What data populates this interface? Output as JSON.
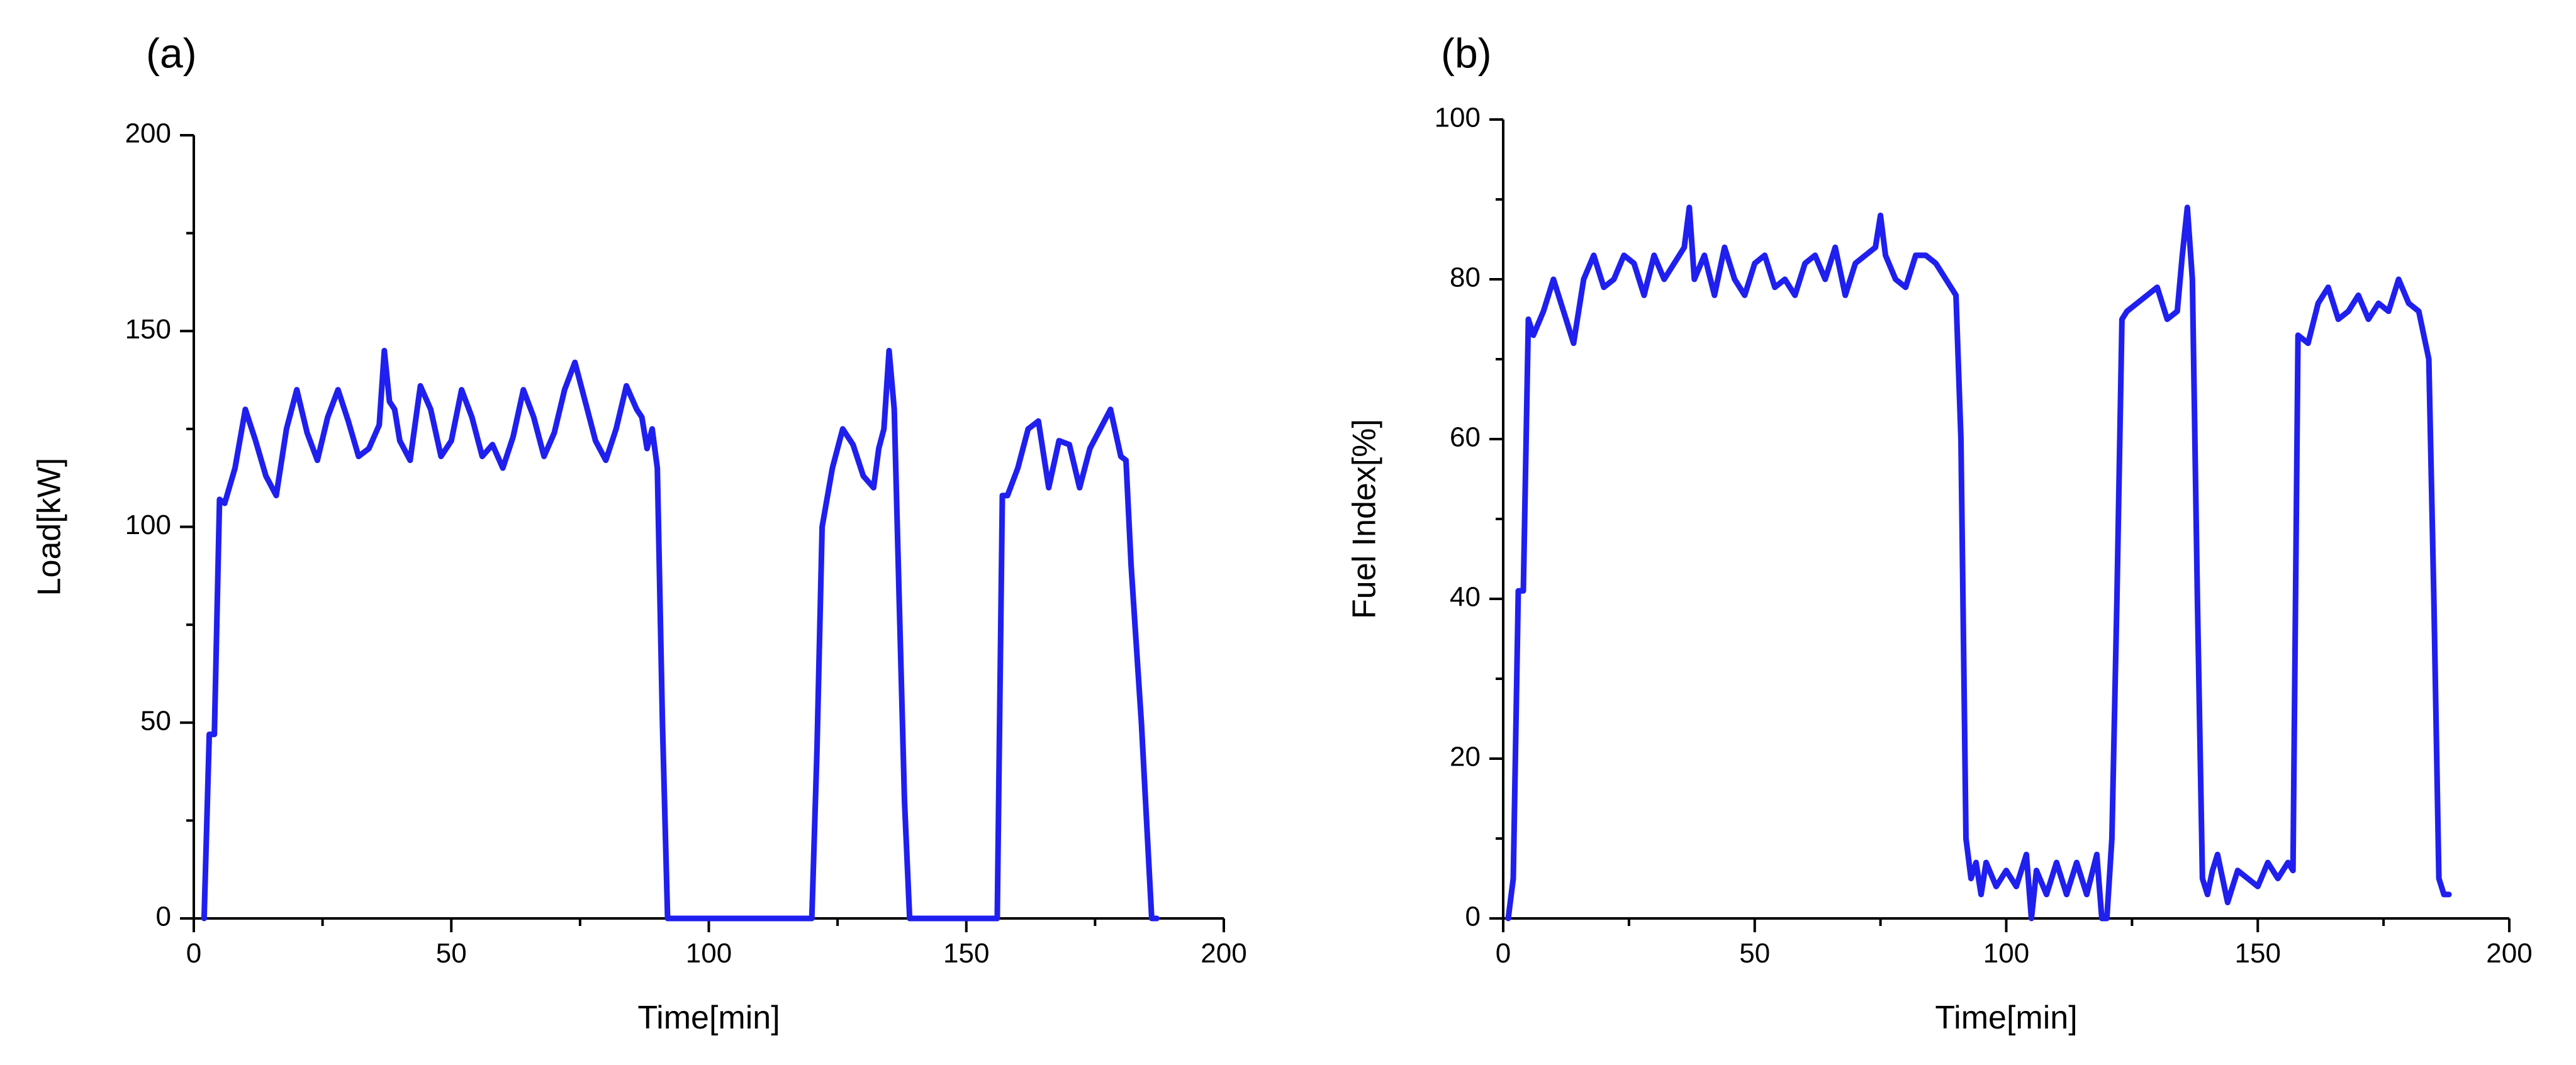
{
  "colors": {
    "series": "#1f1ff0",
    "axis": "#000000",
    "background": "#ffffff"
  },
  "chart_data": [
    {
      "type": "line",
      "panel_label": "(a)",
      "xlabel": "Time[min]",
      "ylabel": "Load[kW]",
      "xlim": [
        0,
        200
      ],
      "ylim": [
        0,
        200
      ],
      "x_ticks": [
        "0",
        "50",
        "100",
        "150",
        "200"
      ],
      "y_ticks": [
        "0",
        "50",
        "100",
        "150",
        "200"
      ],
      "grid": false,
      "series": [
        {
          "x": [
            2,
            3,
            4,
            5,
            6,
            8,
            10,
            12,
            14,
            16,
            18,
            20,
            22,
            24,
            26,
            28,
            30,
            32,
            34,
            36,
            37,
            38,
            39,
            40,
            42,
            44,
            46,
            48,
            50,
            52,
            54,
            56,
            58,
            60,
            62,
            64,
            66,
            68,
            70,
            72,
            74,
            76,
            78,
            80,
            82,
            84,
            86,
            87,
            88,
            89,
            90,
            91,
            92,
            93,
            120,
            121,
            122,
            124,
            126,
            128,
            130,
            132,
            133,
            134,
            135,
            136,
            137,
            138,
            139,
            140,
            142,
            156,
            157,
            158,
            160,
            162,
            164,
            166,
            168,
            170,
            172,
            174,
            176,
            178,
            180,
            181,
            182,
            184,
            186,
            187
          ],
          "y": [
            0,
            47,
            47,
            107,
            106,
            115,
            130,
            122,
            113,
            108,
            125,
            135,
            124,
            117,
            128,
            135,
            127,
            118,
            120,
            126,
            145,
            132,
            130,
            122,
            117,
            136,
            130,
            118,
            122,
            135,
            128,
            118,
            121,
            115,
            123,
            135,
            128,
            118,
            124,
            135,
            142,
            132,
            122,
            117,
            125,
            136,
            130,
            128,
            120,
            125,
            115,
            50,
            0,
            0,
            0,
            43,
            100,
            115,
            125,
            121,
            113,
            110,
            120,
            125,
            145,
            130,
            80,
            30,
            0,
            0,
            0,
            0,
            108,
            108,
            115,
            125,
            127,
            110,
            122,
            121,
            110,
            120,
            125,
            130,
            118,
            117,
            90,
            50,
            0,
            0
          ]
        }
      ]
    },
    {
      "type": "line",
      "panel_label": "(b)",
      "xlabel": "Time[min]",
      "ylabel": "Fuel Index[%]",
      "xlim": [
        0,
        200
      ],
      "ylim": [
        0,
        100
      ],
      "x_ticks": [
        "0",
        "50",
        "100",
        "150",
        "200"
      ],
      "y_ticks": [
        "0",
        "20",
        "40",
        "60",
        "80",
        "100"
      ],
      "grid": false,
      "series": [
        {
          "x": [
            1,
            2,
            3,
            4,
            5,
            6,
            8,
            10,
            12,
            14,
            16,
            18,
            20,
            22,
            24,
            26,
            28,
            30,
            32,
            34,
            36,
            37,
            38,
            40,
            42,
            44,
            46,
            48,
            50,
            52,
            54,
            56,
            58,
            60,
            62,
            64,
            66,
            68,
            70,
            72,
            74,
            75,
            76,
            78,
            80,
            82,
            84,
            86,
            88,
            90,
            91,
            92,
            93,
            94,
            95,
            96,
            98,
            100,
            102,
            104,
            105,
            106,
            108,
            110,
            112,
            114,
            116,
            118,
            119,
            120,
            121,
            122,
            123,
            124,
            126,
            128,
            130,
            132,
            134,
            135,
            136,
            137,
            138,
            139,
            140,
            141,
            142,
            144,
            146,
            148,
            150,
            152,
            154,
            156,
            157,
            158,
            160,
            162,
            164,
            166,
            168,
            170,
            172,
            174,
            176,
            178,
            180,
            182,
            184,
            185,
            186,
            187,
            188
          ],
          "y": [
            0,
            5,
            41,
            41,
            75,
            73,
            76,
            80,
            76,
            72,
            80,
            83,
            79,
            80,
            83,
            82,
            78,
            83,
            80,
            82,
            84,
            89,
            80,
            83,
            78,
            84,
            80,
            78,
            82,
            83,
            79,
            80,
            78,
            82,
            83,
            80,
            84,
            78,
            82,
            83,
            84,
            88,
            83,
            80,
            79,
            83,
            83,
            82,
            80,
            78,
            60,
            10,
            5,
            7,
            3,
            7,
            4,
            6,
            4,
            8,
            0,
            6,
            3,
            7,
            3,
            7,
            3,
            8,
            0,
            0,
            10,
            40,
            75,
            76,
            77,
            78,
            79,
            75,
            76,
            83,
            89,
            80,
            40,
            5,
            3,
            6,
            8,
            2,
            6,
            5,
            4,
            7,
            5,
            7,
            6,
            73,
            72,
            77,
            79,
            75,
            76,
            78,
            75,
            77,
            76,
            80,
            77,
            76,
            70,
            40,
            5,
            3,
            3
          ]
        }
      ]
    }
  ]
}
